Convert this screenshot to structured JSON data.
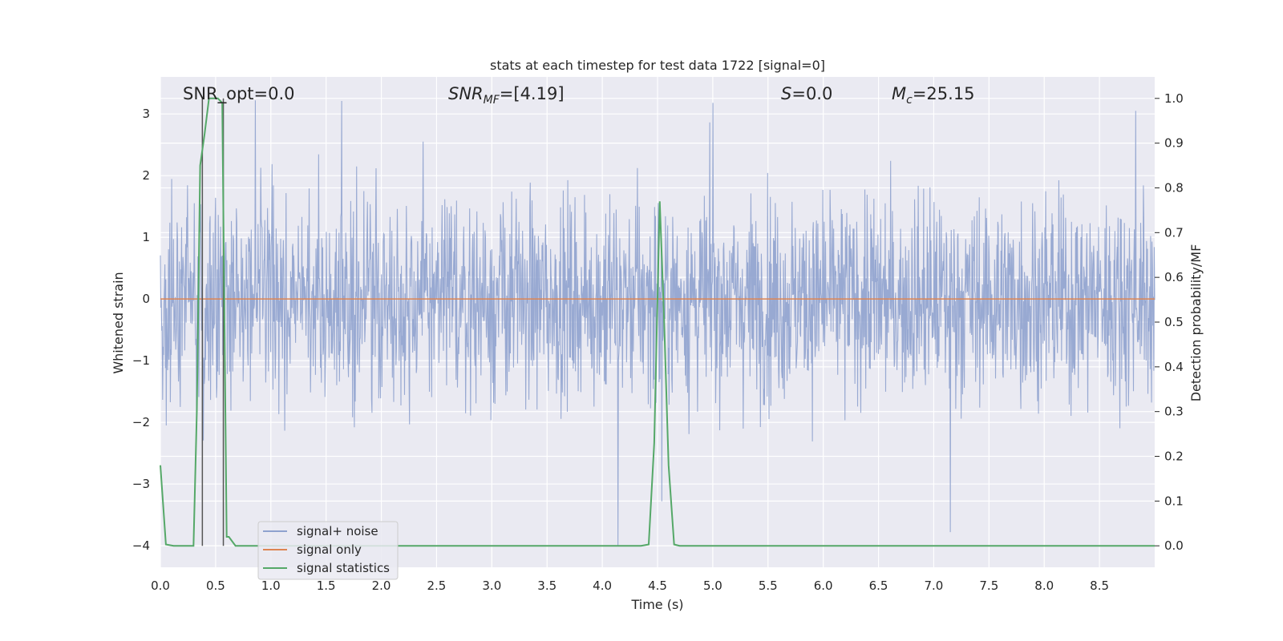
{
  "chart_data": {
    "type": "line",
    "title": "stats at each timestep for test data 1722 [signal=0]",
    "xlabel": "Time (s)",
    "ylabel": "Whitened strain",
    "y2label": "Detection probability/MF",
    "xlim": [
      0,
      9.0
    ],
    "ylim": [
      -4.35,
      3.6
    ],
    "y2lim": [
      -0.048,
      1.048
    ],
    "x_ticks": [
      "0.0",
      "0.5",
      "1.0",
      "1.5",
      "2.0",
      "2.5",
      "3.0",
      "3.5",
      "4.0",
      "4.5",
      "5.0",
      "5.5",
      "6.0",
      "6.5",
      "7.0",
      "7.5",
      "8.0",
      "8.5"
    ],
    "y_ticks": [
      "3",
      "2",
      "1",
      "0",
      "−1",
      "−2",
      "−3",
      "−4"
    ],
    "y2_ticks": [
      "1.0",
      "0.9",
      "0.8",
      "0.7",
      "0.6",
      "0.5",
      "0.4",
      "0.3",
      "0.2",
      "0.1",
      "0.0"
    ],
    "grid": true,
    "legend_position": "lower-left",
    "annotations": {
      "snr_opt": "SNR_opt=0.0",
      "snr_mf_base": "SNR",
      "snr_mf_sub": "MF",
      "snr_mf_value": "=[4.19]",
      "s_label": "S",
      "s_value": "=0.0",
      "mc_base": "M",
      "mc_sub": "c",
      "mc_value": "=25.15"
    },
    "series": [
      {
        "name": "signal+ noise",
        "color": "#8fa2ce",
        "description_kind": "noise",
        "x_range": [
          0,
          9.0
        ],
        "notable_peaks": [
          {
            "x": 0.86,
            "y": 3.22
          },
          {
            "x": 1.64,
            "y": 3.21
          },
          {
            "x": 4.54,
            "y": -3.28
          },
          {
            "x": 4.14,
            "y": -4.0
          },
          {
            "x": 5.0,
            "y": 3.18
          },
          {
            "x": 7.15,
            "y": -3.78
          },
          {
            "x": 8.83,
            "y": 3.05
          }
        ]
      },
      {
        "name": "signal only",
        "color": "#dd8452",
        "x": [
          0,
          9.0
        ],
        "y": [
          0,
          0
        ]
      },
      {
        "name": "signal statistics",
        "color": "#55a868",
        "axis": "right",
        "x": [
          0.0,
          0.05,
          0.12,
          0.18,
          0.3,
          0.33,
          0.36,
          0.4,
          0.44,
          0.48,
          0.52,
          0.56,
          0.6,
          0.62,
          0.68,
          0.75,
          4.35,
          4.42,
          4.47,
          4.52,
          4.56,
          4.6,
          4.65,
          4.7,
          4.75,
          9.0
        ],
        "y": [
          0.18,
          0.003,
          0.0,
          0.0,
          0.0,
          0.3,
          0.85,
          0.92,
          1.0,
          1.0,
          1.0,
          0.99,
          0.02,
          0.02,
          0.0,
          0.0,
          0.0,
          0.003,
          0.23,
          0.77,
          0.5,
          0.18,
          0.003,
          0.0,
          0.0,
          0.0
        ]
      }
    ],
    "vertical_markers": [
      {
        "x": 0.38,
        "label": "",
        "color": "#555555"
      },
      {
        "x": 0.57,
        "label": "",
        "color": "#555555"
      }
    ]
  }
}
